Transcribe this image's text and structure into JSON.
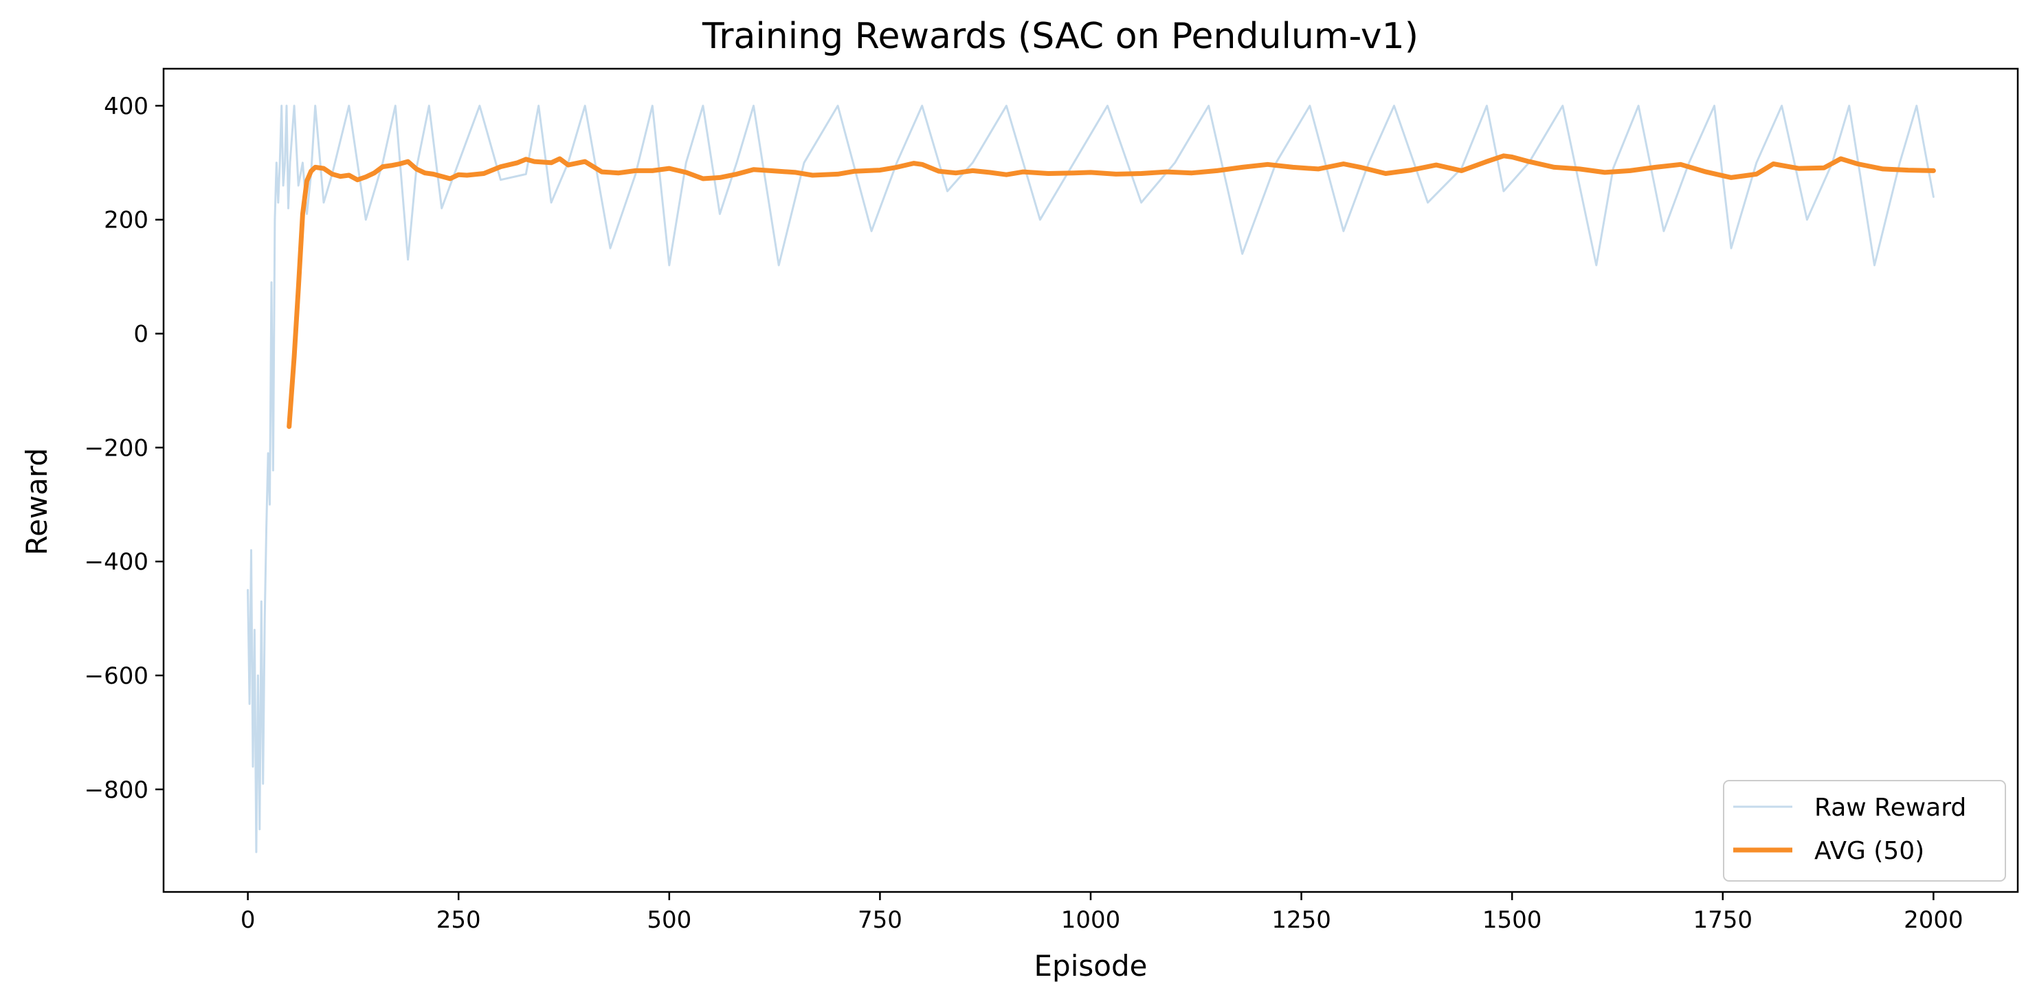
{
  "chart_data": {
    "type": "line",
    "title": "Training Rewards (SAC on Pendulum-v1)",
    "xlabel": "Episode",
    "ylabel": "Reward",
    "xlim": [
      -100,
      2100
    ],
    "ylim": [
      -980,
      465
    ],
    "xticks": [
      0,
      250,
      500,
      750,
      1000,
      1250,
      1500,
      1750,
      2000
    ],
    "xtick_labels": [
      "0",
      "250",
      "500",
      "750",
      "1000",
      "1250",
      "1500",
      "1750",
      "2000"
    ],
    "yticks": [
      400,
      200,
      0,
      -200,
      -400,
      -600,
      -800
    ],
    "ytick_labels": [
      "400",
      "200",
      "0",
      "−200",
      "−400",
      "−600",
      "−800"
    ],
    "grid": false,
    "legend": {
      "placement": "lower right",
      "entries": [
        "Raw Reward",
        "AVG (50)"
      ]
    },
    "colors": {
      "raw": "#c6dbec",
      "avg": "#f78d28",
      "axes": "#000000"
    },
    "series": [
      {
        "name": "Raw Reward",
        "x": [
          0,
          2,
          4,
          6,
          8,
          10,
          12,
          14,
          16,
          18,
          20,
          22,
          24,
          26,
          28,
          30,
          32,
          34,
          36,
          38,
          40,
          42,
          44,
          46,
          48,
          50,
          55,
          60,
          65,
          70,
          75,
          80,
          90,
          100,
          120,
          140,
          160,
          175,
          190,
          200,
          215,
          230,
          250,
          275,
          300,
          330,
          345,
          360,
          380,
          400,
          430,
          460,
          480,
          500,
          520,
          540,
          560,
          580,
          600,
          630,
          660,
          700,
          740,
          770,
          800,
          830,
          860,
          900,
          940,
          980,
          1020,
          1060,
          1100,
          1140,
          1180,
          1220,
          1260,
          1300,
          1330,
          1360,
          1400,
          1440,
          1470,
          1490,
          1520,
          1560,
          1600,
          1620,
          1650,
          1680,
          1710,
          1740,
          1760,
          1790,
          1820,
          1850,
          1880,
          1900,
          1930,
          1960,
          1980,
          2000
        ],
        "values": [
          -450,
          -650,
          -380,
          -760,
          -520,
          -910,
          -600,
          -870,
          -470,
          -790,
          -500,
          -340,
          -210,
          -300,
          90,
          -240,
          200,
          300,
          230,
          300,
          400,
          260,
          300,
          400,
          220,
          300,
          400,
          260,
          300,
          210,
          280,
          400,
          230,
          280,
          400,
          200,
          300,
          400,
          130,
          290,
          400,
          220,
          300,
          400,
          270,
          280,
          400,
          230,
          300,
          400,
          150,
          280,
          400,
          120,
          300,
          400,
          210,
          300,
          400,
          120,
          300,
          400,
          180,
          300,
          400,
          250,
          300,
          400,
          200,
          300,
          400,
          230,
          300,
          400,
          140,
          300,
          400,
          180,
          300,
          400,
          230,
          290,
          400,
          250,
          300,
          400,
          120,
          290,
          400,
          180,
          300,
          400,
          150,
          300,
          400,
          200,
          300,
          400,
          120,
          300,
          400,
          240
        ]
      },
      {
        "name": "AVG (50)",
        "x": [
          49,
          55,
          60,
          65,
          70,
          75,
          80,
          90,
          100,
          110,
          120,
          130,
          140,
          150,
          160,
          170,
          180,
          190,
          200,
          210,
          220,
          240,
          250,
          260,
          280,
          300,
          320,
          330,
          340,
          360,
          370,
          380,
          400,
          420,
          440,
          460,
          480,
          500,
          520,
          540,
          560,
          580,
          600,
          620,
          650,
          670,
          700,
          720,
          750,
          770,
          790,
          800,
          820,
          840,
          860,
          880,
          900,
          920,
          950,
          980,
          1000,
          1030,
          1060,
          1090,
          1120,
          1150,
          1180,
          1210,
          1240,
          1270,
          1300,
          1320,
          1350,
          1380,
          1410,
          1440,
          1470,
          1490,
          1500,
          1520,
          1550,
          1580,
          1610,
          1640,
          1670,
          1700,
          1730,
          1760,
          1790,
          1810,
          1840,
          1870,
          1890,
          1910,
          1940,
          1970,
          2000
        ],
        "values": [
          -163,
          -40,
          80,
          210,
          268,
          285,
          292,
          290,
          280,
          276,
          278,
          270,
          275,
          282,
          293,
          295,
          298,
          302,
          289,
          282,
          280,
          272,
          279,
          278,
          281,
          293,
          300,
          306,
          302,
          300,
          307,
          296,
          302,
          284,
          282,
          286,
          286,
          290,
          283,
          272,
          274,
          280,
          288,
          286,
          283,
          278,
          280,
          285,
          287,
          292,
          299,
          297,
          285,
          282,
          286,
          283,
          279,
          284,
          281,
          282,
          283,
          280,
          281,
          284,
          282,
          286,
          292,
          297,
          292,
          289,
          298,
          292,
          281,
          287,
          296,
          286,
          302,
          312,
          310,
          302,
          292,
          289,
          283,
          286,
          292,
          297,
          284,
          274,
          280,
          298,
          290,
          291,
          307,
          298,
          289,
          287,
          286
        ]
      }
    ]
  }
}
